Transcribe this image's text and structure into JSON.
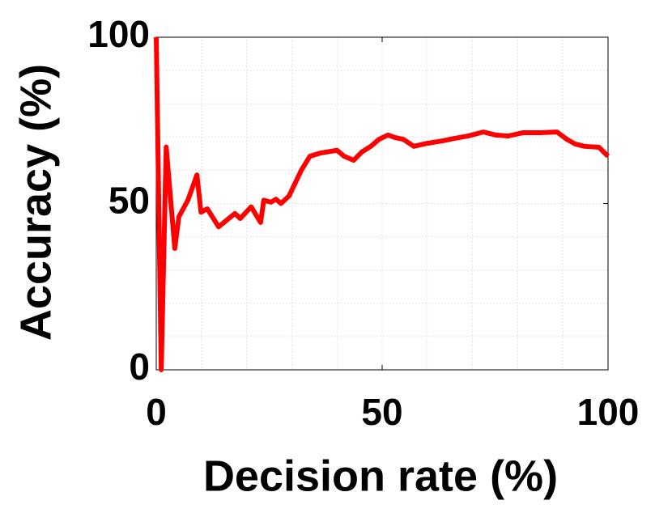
{
  "chart_data": {
    "type": "line",
    "xlabel": "Decision rate (%)",
    "ylabel": "Accuracy (%)",
    "x": [
      0,
      1.1,
      2.2,
      4.1,
      5,
      7,
      9,
      9.9,
      11.3,
      13.8,
      17.4,
      18.6,
      21,
      23.1,
      23.8,
      25.4,
      26.5,
      27.6,
      29.4,
      32.1,
      34,
      36.4,
      40,
      41.6,
      43.7,
      45.5,
      47.5,
      49.3,
      51.3,
      52.9,
      54.7,
      57,
      60,
      63.6,
      66.1,
      69,
      72.4,
      75.1,
      77.9,
      81.2,
      85.1,
      88.7,
      90.9,
      92.7,
      94.8,
      98,
      100
    ],
    "series": [
      {
        "color": "#ff0000",
        "values": [
          100,
          0,
          67,
          36.5,
          46,
          51,
          58.6,
          47.4,
          48.4,
          43,
          47,
          45.5,
          49,
          44.3,
          51,
          50.4,
          51.3,
          50,
          52.3,
          60,
          64.2,
          65.2,
          66,
          64.2,
          63,
          65.5,
          67.2,
          69.3,
          70.6,
          69.8,
          69.3,
          67.2,
          68.1,
          68.9,
          69.6,
          70.3,
          71.5,
          70.6,
          70.3,
          71.3,
          71.3,
          71.5,
          69.3,
          67.9,
          67.2,
          66.9,
          64.2
        ]
      }
    ],
    "xlim": [
      0,
      100
    ],
    "ylim": [
      0,
      100
    ],
    "xticks": [
      0,
      50,
      100
    ],
    "yticks": [
      0,
      50,
      100
    ],
    "grid": true
  }
}
